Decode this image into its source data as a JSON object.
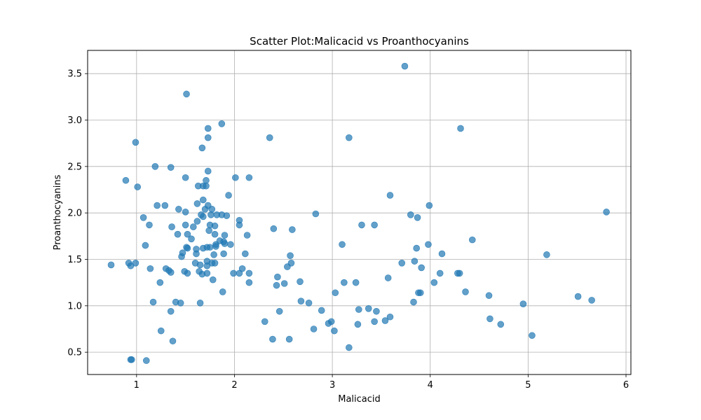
{
  "chart_data": {
    "type": "scatter",
    "title": "Scatter Plot:Malicacid vs Proanthocyanins",
    "xlabel": "Malicacid",
    "ylabel": "Proanthocyanins",
    "xlim": [
      0.5,
      6.05
    ],
    "ylim": [
      0.26,
      3.75
    ],
    "xticks": [
      1,
      2,
      3,
      4,
      5,
      6
    ],
    "yticks": [
      0.5,
      1.0,
      1.5,
      2.0,
      2.5,
      3.0,
      3.5
    ],
    "ytick_labels": [
      "0.5",
      "1.0",
      "1.5",
      "2.0",
      "2.5",
      "3.0",
      "3.5"
    ],
    "grid": true,
    "marker_color": "#1f77b4",
    "marker_alpha": 0.7,
    "points": [
      [
        0.74,
        1.44
      ],
      [
        0.89,
        2.35
      ],
      [
        0.92,
        1.46
      ],
      [
        0.94,
        1.43
      ],
      [
        0.94,
        0.42
      ],
      [
        0.95,
        0.42
      ],
      [
        0.99,
        1.46
      ],
      [
        0.99,
        2.76
      ],
      [
        1.01,
        2.28
      ],
      [
        1.07,
        1.95
      ],
      [
        1.09,
        1.65
      ],
      [
        1.1,
        0.41
      ],
      [
        1.13,
        1.87
      ],
      [
        1.14,
        1.4
      ],
      [
        1.17,
        1.04
      ],
      [
        1.19,
        2.5
      ],
      [
        1.21,
        2.08
      ],
      [
        1.24,
        1.25
      ],
      [
        1.25,
        0.73
      ],
      [
        1.29,
        2.08
      ],
      [
        1.3,
        1.4
      ],
      [
        1.33,
        1.38
      ],
      [
        1.35,
        1.36
      ],
      [
        1.35,
        2.49
      ],
      [
        1.35,
        0.94
      ],
      [
        1.36,
        1.85
      ],
      [
        1.37,
        0.62
      ],
      [
        1.4,
        1.04
      ],
      [
        1.42,
        1.77
      ],
      [
        1.43,
        2.04
      ],
      [
        1.45,
        1.03
      ],
      [
        1.46,
        1.53
      ],
      [
        1.47,
        1.57
      ],
      [
        1.49,
        1.37
      ],
      [
        1.5,
        2.38
      ],
      [
        1.5,
        1.87
      ],
      [
        1.5,
        2.01
      ],
      [
        1.51,
        1.63
      ],
      [
        1.51,
        3.28
      ],
      [
        1.52,
        1.35
      ],
      [
        1.52,
        1.62
      ],
      [
        1.52,
        1.77
      ],
      [
        1.56,
        1.72
      ],
      [
        1.58,
        1.85
      ],
      [
        1.6,
        1.46
      ],
      [
        1.61,
        1.56
      ],
      [
        1.61,
        1.61
      ],
      [
        1.62,
        2.1
      ],
      [
        1.62,
        1.91
      ],
      [
        1.63,
        2.29
      ],
      [
        1.64,
        1.37
      ],
      [
        1.65,
        1.44
      ],
      [
        1.65,
        1.03
      ],
      [
        1.66,
        1.98
      ],
      [
        1.67,
        1.34
      ],
      [
        1.67,
        2.7
      ],
      [
        1.68,
        2.29
      ],
      [
        1.68,
        2.14
      ],
      [
        1.68,
        1.96
      ],
      [
        1.68,
        1.62
      ],
      [
        1.7,
        2.04
      ],
      [
        1.71,
        2.35
      ],
      [
        1.71,
        2.29
      ],
      [
        1.72,
        1.48
      ],
      [
        1.72,
        1.35
      ],
      [
        1.72,
        1.63
      ],
      [
        1.72,
        1.43
      ],
      [
        1.73,
        2.08
      ],
      [
        1.73,
        2.45
      ],
      [
        1.73,
        2.91
      ],
      [
        1.73,
        2.81
      ],
      [
        1.74,
        1.81
      ],
      [
        1.75,
        1.63
      ],
      [
        1.75,
        1.87
      ],
      [
        1.76,
        1.98
      ],
      [
        1.77,
        2.04
      ],
      [
        1.77,
        1.46
      ],
      [
        1.78,
        1.28
      ],
      [
        1.79,
        1.55
      ],
      [
        1.8,
        1.46
      ],
      [
        1.8,
        1.86
      ],
      [
        1.8,
        1.77
      ],
      [
        1.81,
        1.66
      ],
      [
        1.81,
        1.64
      ],
      [
        1.82,
        1.98
      ],
      [
        1.85,
        1.7
      ],
      [
        1.87,
        1.98
      ],
      [
        1.87,
        2.96
      ],
      [
        1.88,
        1.15
      ],
      [
        1.89,
        1.69
      ],
      [
        1.89,
        1.56
      ],
      [
        1.9,
        1.76
      ],
      [
        1.9,
        1.67
      ],
      [
        1.92,
        1.97
      ],
      [
        1.94,
        2.19
      ],
      [
        1.96,
        1.66
      ],
      [
        1.99,
        1.35
      ],
      [
        2.01,
        2.38
      ],
      [
        2.05,
        1.87
      ],
      [
        2.05,
        1.92
      ],
      [
        2.05,
        1.35
      ],
      [
        2.08,
        1.4
      ],
      [
        2.11,
        1.56
      ],
      [
        2.13,
        1.76
      ],
      [
        2.15,
        2.38
      ],
      [
        2.15,
        1.35
      ],
      [
        2.15,
        1.25
      ],
      [
        2.31,
        0.83
      ],
      [
        2.36,
        2.81
      ],
      [
        2.39,
        0.64
      ],
      [
        2.4,
        1.83
      ],
      [
        2.43,
        1.22
      ],
      [
        2.44,
        1.31
      ],
      [
        2.46,
        0.94
      ],
      [
        2.51,
        1.24
      ],
      [
        2.54,
        1.42
      ],
      [
        2.56,
        0.64
      ],
      [
        2.57,
        1.54
      ],
      [
        2.58,
        1.46
      ],
      [
        2.59,
        1.82
      ],
      [
        2.67,
        1.26
      ],
      [
        2.68,
        1.05
      ],
      [
        2.76,
        1.03
      ],
      [
        2.81,
        0.75
      ],
      [
        2.83,
        1.99
      ],
      [
        2.89,
        0.95
      ],
      [
        2.96,
        0.81
      ],
      [
        2.99,
        0.83
      ],
      [
        3.02,
        0.73
      ],
      [
        3.03,
        1.14
      ],
      [
        3.1,
        1.66
      ],
      [
        3.12,
        1.25
      ],
      [
        3.17,
        2.81
      ],
      [
        3.17,
        0.55
      ],
      [
        3.24,
        1.25
      ],
      [
        3.26,
        0.8
      ],
      [
        3.27,
        0.96
      ],
      [
        3.3,
        1.87
      ],
      [
        3.37,
        0.97
      ],
      [
        3.43,
        0.83
      ],
      [
        3.43,
        1.87
      ],
      [
        3.45,
        0.94
      ],
      [
        3.54,
        0.84
      ],
      [
        3.57,
        1.3
      ],
      [
        3.59,
        0.88
      ],
      [
        3.59,
        2.19
      ],
      [
        3.71,
        1.46
      ],
      [
        3.74,
        3.58
      ],
      [
        3.8,
        1.98
      ],
      [
        3.83,
        1.04
      ],
      [
        3.84,
        1.48
      ],
      [
        3.86,
        1.62
      ],
      [
        3.87,
        1.95
      ],
      [
        3.88,
        1.14
      ],
      [
        3.9,
        1.14
      ],
      [
        3.91,
        1.41
      ],
      [
        3.98,
        1.66
      ],
      [
        3.99,
        2.08
      ],
      [
        4.04,
        1.25
      ],
      [
        4.1,
        1.35
      ],
      [
        4.12,
        1.56
      ],
      [
        4.28,
        1.35
      ],
      [
        4.3,
        1.35
      ],
      [
        4.31,
        2.91
      ],
      [
        4.36,
        1.15
      ],
      [
        4.43,
        1.71
      ],
      [
        4.6,
        1.11
      ],
      [
        4.61,
        0.86
      ],
      [
        4.72,
        0.8
      ],
      [
        4.95,
        1.02
      ],
      [
        5.04,
        0.68
      ],
      [
        5.19,
        1.55
      ],
      [
        5.51,
        1.1
      ],
      [
        5.65,
        1.06
      ],
      [
        5.8,
        2.01
      ]
    ]
  }
}
